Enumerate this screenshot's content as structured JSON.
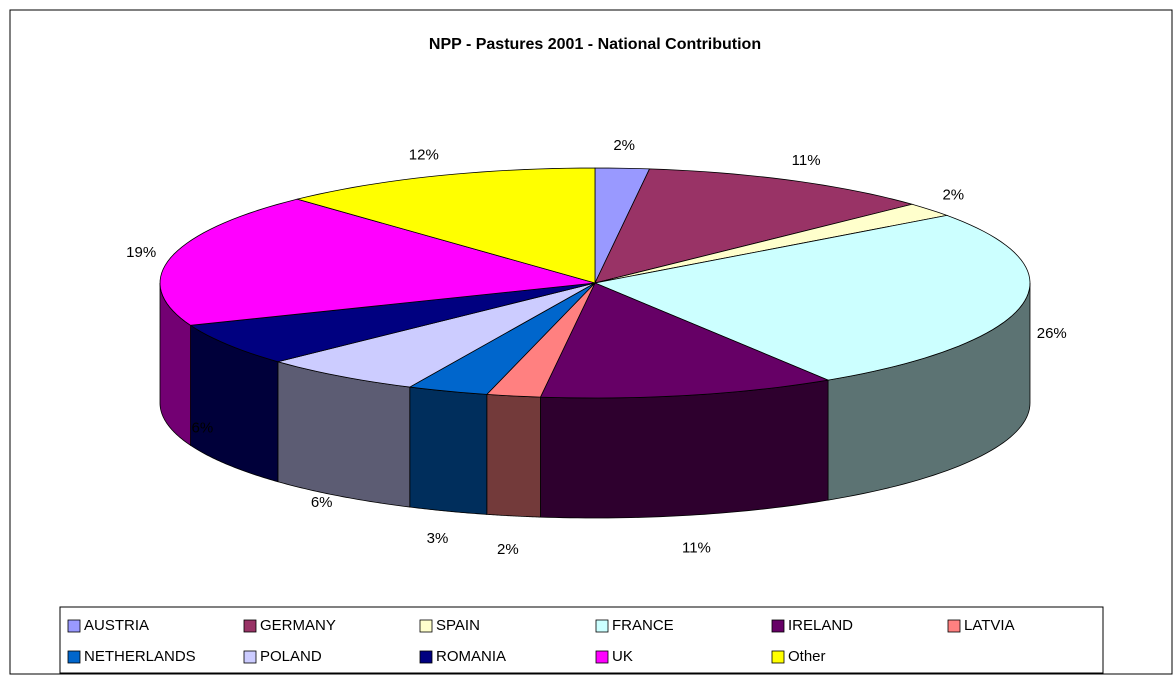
{
  "chart_data": {
    "type": "pie3d",
    "title": "NPP - Pastures 2001 - National Contribution",
    "categories": [
      "AUSTRIA",
      "GERMANY",
      "SPAIN",
      "FRANCE",
      "IRELAND",
      "LATVIA",
      "NETHERLANDS",
      "POLAND",
      "ROMANIA",
      "UK",
      "Other"
    ],
    "values": [
      2,
      11,
      2,
      26,
      11,
      2,
      3,
      6,
      6,
      19,
      12
    ],
    "value_labels": [
      "2%",
      "11%",
      "2%",
      "26%",
      "11%",
      "2%",
      "3%",
      "6%",
      "6%",
      "19%",
      "12%"
    ],
    "colors": [
      "#9999ff",
      "#993366",
      "#ffffcc",
      "#ccffff",
      "#660066",
      "#ff8080",
      "#0066cc",
      "#ccccff",
      "#000080",
      "#ff00ff",
      "#ffff00"
    ],
    "legend": "bottom"
  }
}
